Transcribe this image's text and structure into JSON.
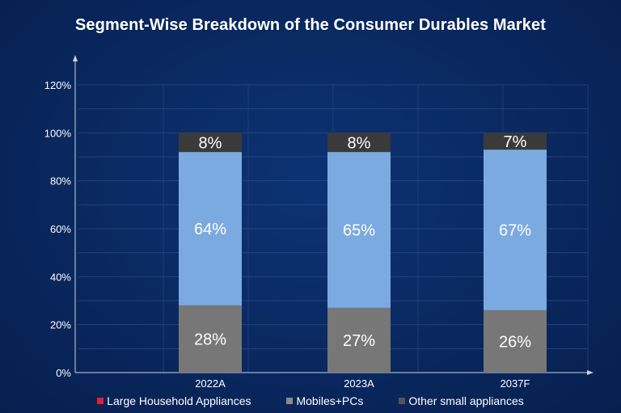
{
  "title": "Segment-Wise Breakdown of the Consumer Durables Market",
  "colors": {
    "background": "#0a2a63",
    "large_household": "#7aaadf",
    "mobiles_pcs": "#777777",
    "other_small": "#3a3a3a",
    "legend_large_household": "#e02030",
    "legend_mobiles_pcs": "#8a8a8a",
    "legend_other_small": "#555555"
  },
  "chart_data": {
    "type": "bar",
    "stacked": true,
    "categories": [
      "2022A",
      "2023A",
      "2037F"
    ],
    "series": [
      {
        "name": "Mobiles+PCs",
        "values": [
          28,
          27,
          26
        ],
        "labels": [
          "28%",
          "27%",
          "26%"
        ]
      },
      {
        "name": "Large Household Appliances",
        "values": [
          64,
          65,
          67
        ],
        "labels": [
          "64%",
          "65%",
          "67%"
        ]
      },
      {
        "name": "Other small appliances",
        "values": [
          8,
          8,
          7
        ],
        "labels": [
          "8%",
          "8%",
          "7%"
        ]
      }
    ],
    "yticks": [
      "0%",
      "20%",
      "40%",
      "60%",
      "80%",
      "100%",
      "120%"
    ],
    "ylim": [
      0,
      120
    ],
    "grid": true,
    "legend_position": "bottom"
  },
  "legend": [
    {
      "label": "Large Household Appliances",
      "color": "#e02030"
    },
    {
      "label": "Mobiles+PCs",
      "color": "#8a8a8a"
    },
    {
      "label": "Other small appliances",
      "color": "#555555"
    }
  ]
}
